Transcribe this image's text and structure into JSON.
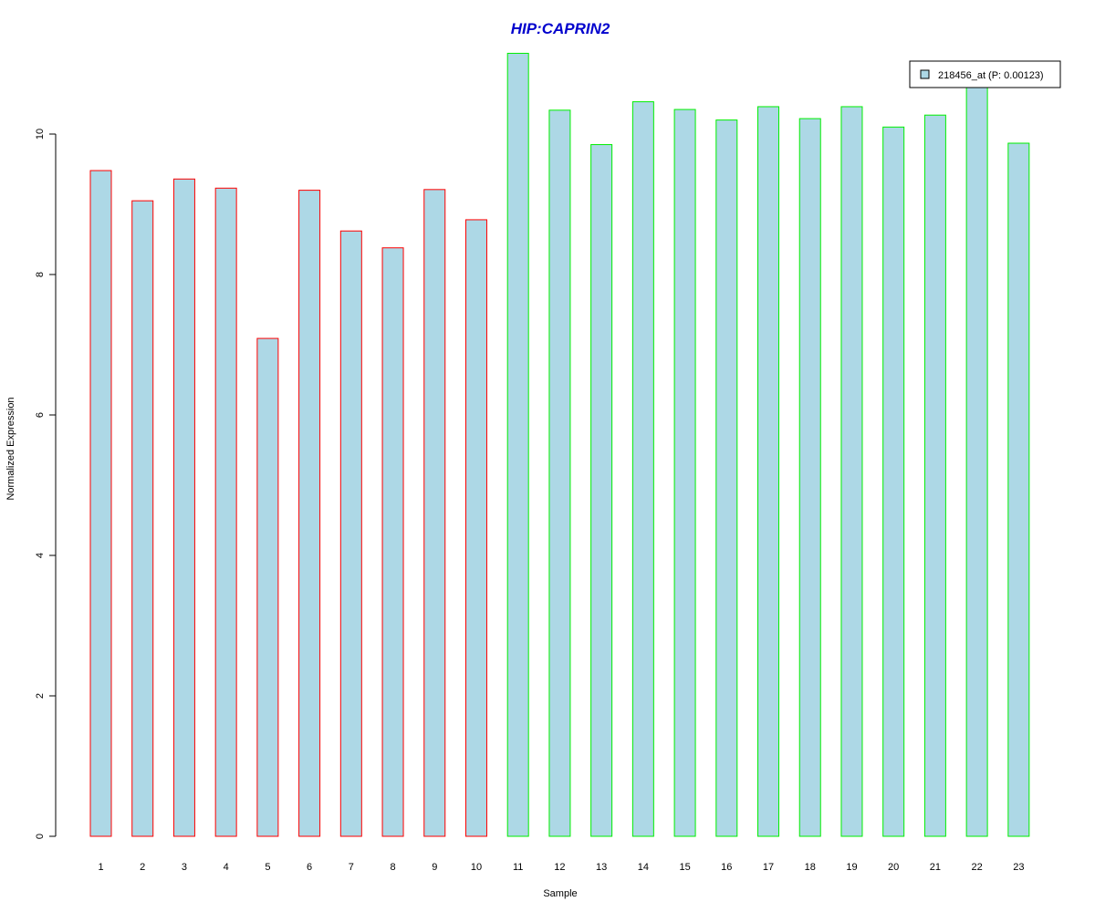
{
  "chart_data": {
    "type": "bar",
    "title": "HIP:CAPRIN2",
    "xlabel": "Sample",
    "ylabel": "Normalized Expression",
    "categories": [
      "1",
      "2",
      "3",
      "4",
      "5",
      "6",
      "7",
      "8",
      "9",
      "10",
      "11",
      "12",
      "13",
      "14",
      "15",
      "16",
      "17",
      "18",
      "19",
      "20",
      "21",
      "22",
      "23"
    ],
    "series": [
      {
        "name": "218456_at (P: 0.00123)",
        "values": [
          9.48,
          9.05,
          9.36,
          9.23,
          7.09,
          9.2,
          8.62,
          8.38,
          9.21,
          8.78,
          11.15,
          10.34,
          9.85,
          10.46,
          10.35,
          10.2,
          10.39,
          10.22,
          10.39,
          10.1,
          10.27,
          10.67,
          9.87
        ]
      }
    ],
    "group_border_colors": [
      "#ff0000",
      "#ff0000",
      "#ff0000",
      "#ff0000",
      "#ff0000",
      "#ff0000",
      "#ff0000",
      "#ff0000",
      "#ff0000",
      "#ff0000",
      "#00ee00",
      "#00ee00",
      "#00ee00",
      "#00ee00",
      "#00ee00",
      "#00ee00",
      "#00ee00",
      "#00ee00",
      "#00ee00",
      "#00ee00",
      "#00ee00",
      "#00ee00",
      "#00ee00"
    ],
    "bar_fill_color": "#add8e6",
    "title_color": "#0000cd",
    "ylim": [
      0,
      11.15
    ],
    "yticks": [
      "0",
      "2",
      "4",
      "6",
      "8",
      "10"
    ],
    "legend_position": "top-right",
    "grid": false
  }
}
